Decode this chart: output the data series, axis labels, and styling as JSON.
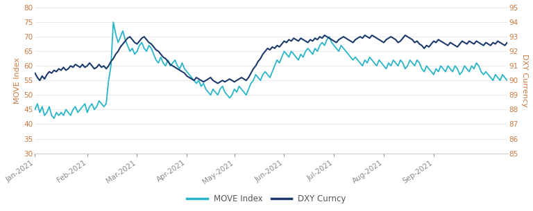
{
  "ylabel_left": "MOVE Index",
  "ylabel_right": "DXY Currency",
  "left_color": "#29B5C8",
  "right_color": "#1B3A6B",
  "ylim_left": [
    30,
    80
  ],
  "ylim_right": [
    85,
    95
  ],
  "yticks_left": [
    30,
    35,
    40,
    45,
    50,
    55,
    60,
    65,
    70,
    75,
    80
  ],
  "yticks_right": [
    85,
    86,
    87,
    88,
    89,
    90,
    91,
    92,
    93,
    94,
    95
  ],
  "legend_labels": [
    "MOVE Index",
    "DXY Curncy"
  ],
  "background_color": "#ffffff",
  "move_data": [
    45,
    47,
    44,
    46,
    43,
    44,
    46,
    43,
    42,
    44,
    43,
    44,
    43,
    45,
    44,
    43,
    45,
    46,
    44,
    45,
    46,
    47,
    44,
    46,
    47,
    45,
    46,
    48,
    47,
    46,
    47,
    55,
    60,
    75,
    71,
    68,
    70,
    72,
    69,
    67,
    65,
    66,
    64,
    65,
    67,
    68,
    66,
    65,
    67,
    66,
    64,
    62,
    61,
    63,
    61,
    60,
    62,
    60,
    61,
    62,
    60,
    59,
    61,
    59,
    58,
    57,
    56,
    55,
    54,
    55,
    53,
    54,
    52,
    51,
    50,
    52,
    51,
    50,
    52,
    53,
    51,
    50,
    49,
    50,
    52,
    51,
    53,
    52,
    51,
    50,
    52,
    54,
    55,
    57,
    56,
    55,
    57,
    58,
    57,
    56,
    58,
    60,
    62,
    61,
    63,
    65,
    64,
    63,
    65,
    64,
    63,
    62,
    64,
    63,
    65,
    66,
    65,
    64,
    66,
    65,
    67,
    68,
    67,
    69,
    70,
    68,
    67,
    66,
    65,
    67,
    66,
    65,
    64,
    63,
    62,
    63,
    62,
    61,
    60,
    62,
    61,
    63,
    62,
    61,
    60,
    62,
    61,
    60,
    59,
    61,
    60,
    62,
    61,
    60,
    62,
    61,
    59,
    60,
    62,
    61,
    60,
    62,
    61,
    59,
    58,
    60,
    59,
    58,
    57,
    59,
    58,
    60,
    59,
    58,
    60,
    59,
    58,
    60,
    59,
    57,
    58,
    60,
    59,
    58,
    60,
    59,
    61,
    60,
    58,
    57,
    58,
    57,
    56,
    55,
    57,
    56,
    55,
    57,
    56,
    55
  ],
  "dxy_data": [
    90.5,
    90.2,
    90.0,
    90.3,
    90.1,
    90.4,
    90.6,
    90.5,
    90.7,
    90.6,
    90.8,
    90.7,
    90.9,
    90.7,
    90.8,
    91.0,
    90.9,
    91.1,
    91.0,
    90.9,
    91.1,
    90.9,
    91.0,
    91.2,
    91.0,
    90.8,
    90.9,
    91.1,
    90.9,
    91.0,
    90.8,
    91.0,
    91.3,
    91.5,
    91.8,
    92.0,
    92.3,
    92.5,
    92.7,
    92.9,
    93.0,
    92.8,
    92.6,
    92.5,
    92.7,
    92.9,
    93.0,
    92.8,
    92.6,
    92.5,
    92.3,
    92.1,
    92.0,
    91.8,
    91.6,
    91.5,
    91.3,
    91.1,
    91.0,
    90.9,
    90.8,
    90.7,
    90.6,
    90.5,
    90.3,
    90.2,
    90.1,
    90.0,
    90.2,
    90.1,
    90.0,
    89.9,
    90.0,
    90.1,
    90.2,
    90.0,
    89.9,
    89.8,
    89.9,
    90.0,
    89.9,
    90.0,
    90.1,
    90.0,
    89.9,
    90.0,
    90.1,
    90.2,
    90.1,
    90.0,
    90.2,
    90.5,
    90.8,
    91.0,
    91.3,
    91.5,
    91.8,
    92.0,
    92.2,
    92.1,
    92.3,
    92.2,
    92.4,
    92.3,
    92.5,
    92.7,
    92.6,
    92.8,
    92.7,
    92.9,
    92.8,
    92.7,
    92.9,
    92.8,
    92.7,
    92.6,
    92.8,
    92.7,
    92.9,
    92.8,
    93.0,
    92.9,
    93.1,
    93.0,
    92.9,
    92.8,
    92.7,
    92.6,
    92.8,
    92.9,
    93.0,
    92.9,
    92.8,
    92.7,
    92.6,
    92.8,
    92.9,
    93.0,
    92.9,
    93.1,
    93.0,
    92.9,
    93.1,
    93.0,
    92.9,
    92.8,
    92.7,
    92.6,
    92.8,
    92.9,
    93.0,
    92.9,
    92.8,
    92.6,
    92.7,
    92.9,
    93.1,
    93.0,
    92.9,
    92.8,
    92.6,
    92.7,
    92.5,
    92.4,
    92.2,
    92.4,
    92.3,
    92.5,
    92.7,
    92.6,
    92.8,
    92.7,
    92.6,
    92.5,
    92.4,
    92.6,
    92.5,
    92.4,
    92.3,
    92.5,
    92.7,
    92.6,
    92.5,
    92.7,
    92.6,
    92.5,
    92.7,
    92.6,
    92.5,
    92.4,
    92.6,
    92.5,
    92.4,
    92.6,
    92.5,
    92.7,
    92.6,
    92.5,
    92.4,
    92.6
  ],
  "xtick_positions": [
    0,
    22,
    43,
    64,
    84,
    105,
    126,
    147,
    168
  ],
  "xtick_labels": [
    "Jan-2021",
    "Feb-2021",
    "Mar-2021",
    "Apr-2021",
    "May-2021",
    "Jun-2021",
    "Jul-2021",
    "Aug-2021",
    "Sep-2021"
  ],
  "axis_label_color": "#C87941",
  "tick_label_color": "#C87941",
  "grid_color": "#E0E0E0",
  "spine_color": "#CCCCCC",
  "xtick_label_color": "#888888"
}
